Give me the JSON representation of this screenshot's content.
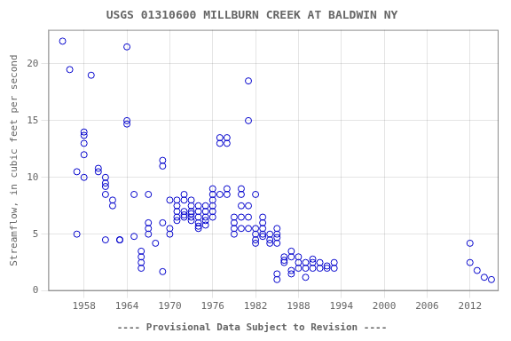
{
  "chart_data": {
    "type": "scatter",
    "title": "USGS 01310600 MILLBURN CREEK AT BALDWIN NY",
    "y_label": "Streamflow, in cubic feet per second",
    "annotation": "---- Provisional Data Subject to Revision ----",
    "xlim": [
      1953,
      2016
    ],
    "ylim": [
      0,
      23
    ],
    "xticks": [
      1958,
      1964,
      1970,
      1976,
      1982,
      1988,
      1994,
      2000,
      2006,
      2012
    ],
    "yticks": [
      0,
      5,
      10,
      15,
      20
    ],
    "grid": true,
    "color": "#0000cc",
    "marker": "circle",
    "x": [
      1955,
      1956,
      1957,
      1957,
      1958,
      1958,
      1958,
      1958,
      1958,
      1959,
      1960,
      1960,
      1961,
      1961,
      1961,
      1961,
      1961,
      1962,
      1962,
      1963,
      1963,
      1964,
      1964,
      1964,
      1965,
      1965,
      1966,
      1966,
      1966,
      1966,
      1967,
      1967,
      1967,
      1967,
      1968,
      1969,
      1969,
      1969,
      1969,
      1970,
      1970,
      1970,
      1971,
      1971,
      1971,
      1971,
      1971,
      1972,
      1972,
      1972,
      1972,
      1972,
      1973,
      1973,
      1973,
      1973,
      1973,
      1973,
      1974,
      1974,
      1974,
      1974,
      1974,
      1974,
      1975,
      1975,
      1975,
      1975,
      1975,
      1976,
      1976,
      1976,
      1976,
      1976,
      1976,
      1977,
      1977,
      1977,
      1978,
      1978,
      1978,
      1978,
      1979,
      1979,
      1979,
      1979,
      1980,
      1980,
      1980,
      1980,
      1980,
      1981,
      1981,
      1981,
      1981,
      1981,
      1982,
      1982,
      1982,
      1982,
      1982,
      1983,
      1983,
      1983,
      1983,
      1983,
      1984,
      1984,
      1984,
      1985,
      1985,
      1985,
      1985,
      1985,
      1985,
      1986,
      1986,
      1986,
      1987,
      1987,
      1987,
      1987,
      1988,
      1988,
      1988,
      1989,
      1989,
      1989,
      1990,
      1990,
      1990,
      1991,
      1991,
      1992,
      1992,
      1993,
      1993,
      2012,
      2012,
      2013,
      2014,
      2015
    ],
    "values": [
      22.0,
      19.5,
      10.5,
      5.0,
      14.0,
      13.7,
      13.0,
      12.0,
      10.0,
      19.0,
      10.8,
      10.5,
      10.0,
      9.5,
      9.2,
      8.5,
      4.5,
      8.0,
      7.5,
      4.5,
      4.5,
      21.5,
      14.7,
      15.0,
      8.5,
      4.8,
      3.5,
      3.0,
      2.5,
      2.0,
      8.5,
      6.0,
      5.5,
      5.0,
      4.2,
      11.5,
      11.0,
      6.0,
      1.7,
      8.0,
      5.5,
      5.0,
      8.0,
      7.5,
      7.0,
      6.5,
      6.2,
      8.5,
      8.0,
      7.0,
      6.7,
      6.5,
      8.0,
      7.5,
      7.0,
      6.8,
      6.5,
      6.2,
      7.5,
      7.0,
      6.5,
      6.0,
      5.7,
      5.5,
      7.5,
      7.0,
      6.5,
      6.2,
      5.8,
      9.0,
      8.5,
      8.0,
      7.5,
      7.0,
      6.5,
      13.5,
      13.0,
      8.5,
      13.5,
      13.0,
      9.0,
      8.5,
      6.5,
      6.0,
      5.5,
      5.0,
      9.0,
      8.5,
      7.5,
      6.5,
      5.5,
      18.5,
      15.0,
      7.5,
      6.5,
      5.5,
      8.5,
      5.5,
      5.0,
      4.5,
      4.2,
      6.5,
      6.0,
      5.5,
      5.0,
      4.8,
      5.0,
      4.5,
      4.2,
      5.5,
      5.0,
      4.7,
      4.2,
      1.5,
      1.0,
      3.0,
      2.7,
      2.5,
      3.5,
      3.0,
      1.8,
      1.5,
      3.0,
      2.5,
      2.0,
      2.5,
      2.0,
      1.2,
      2.8,
      2.5,
      2.0,
      2.5,
      2.0,
      2.2,
      2.0,
      2.5,
      2.0,
      4.2,
      2.5,
      1.8,
      1.2,
      1.0
    ]
  }
}
